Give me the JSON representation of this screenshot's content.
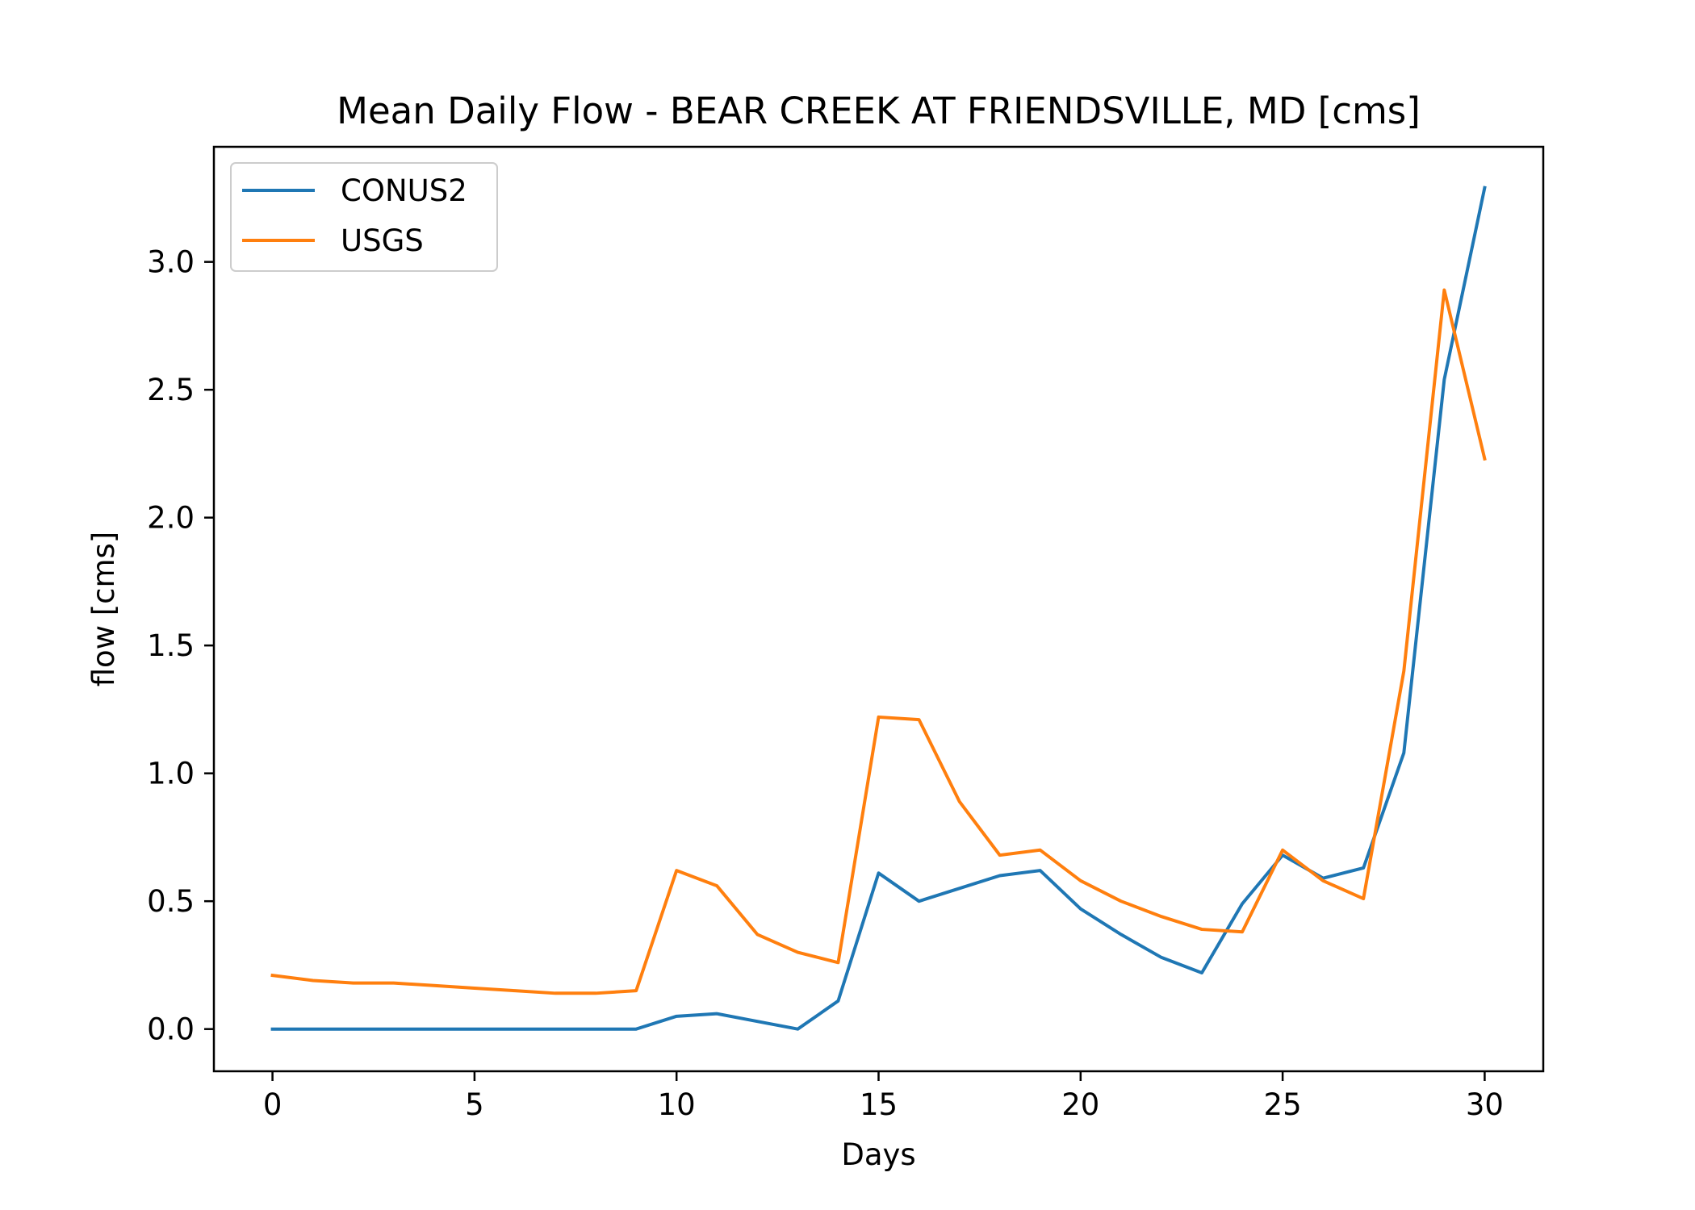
{
  "chart_data": {
    "type": "line",
    "title": "Mean Daily Flow - BEAR CREEK AT FRIENDSVILLE, MD [cms]",
    "xlabel": "Days",
    "ylabel": "flow [cms]",
    "xlim": [
      -1.45,
      31.45
    ],
    "ylim": [
      -0.165,
      3.45
    ],
    "x_ticks": [
      0,
      5,
      10,
      15,
      20,
      25,
      30
    ],
    "x_tick_labels": [
      "0",
      "5",
      "10",
      "15",
      "20",
      "25",
      "30"
    ],
    "y_ticks": [
      0.0,
      0.5,
      1.0,
      1.5,
      2.0,
      2.5,
      3.0
    ],
    "y_tick_labels": [
      "0.0",
      "0.5",
      "1.0",
      "1.5",
      "2.0",
      "2.5",
      "3.0"
    ],
    "grid": false,
    "legend_position": "top-left",
    "x": [
      0,
      1,
      2,
      3,
      4,
      5,
      6,
      7,
      8,
      9,
      10,
      11,
      12,
      13,
      14,
      15,
      16,
      17,
      18,
      19,
      20,
      21,
      22,
      23,
      24,
      25,
      26,
      27,
      28,
      29,
      30
    ],
    "series": [
      {
        "name": "CONUS2",
        "color": "#1f77b4",
        "values": [
          0.0,
          0.0,
          0.0,
          0.0,
          0.0,
          0.0,
          0.0,
          0.0,
          0.0,
          0.0,
          0.05,
          0.06,
          0.03,
          0.0,
          0.11,
          0.61,
          0.5,
          0.55,
          0.6,
          0.62,
          0.47,
          0.37,
          0.28,
          0.22,
          0.49,
          0.68,
          0.59,
          0.63,
          1.08,
          2.54,
          3.29
        ]
      },
      {
        "name": "USGS",
        "color": "#ff7f0e",
        "values": [
          0.21,
          0.19,
          0.18,
          0.18,
          0.17,
          0.16,
          0.15,
          0.14,
          0.14,
          0.15,
          0.62,
          0.56,
          0.37,
          0.3,
          0.26,
          1.22,
          1.21,
          0.89,
          0.68,
          0.7,
          0.58,
          0.5,
          0.44,
          0.39,
          0.38,
          0.7,
          0.58,
          0.51,
          1.4,
          2.89,
          2.23
        ]
      }
    ]
  }
}
